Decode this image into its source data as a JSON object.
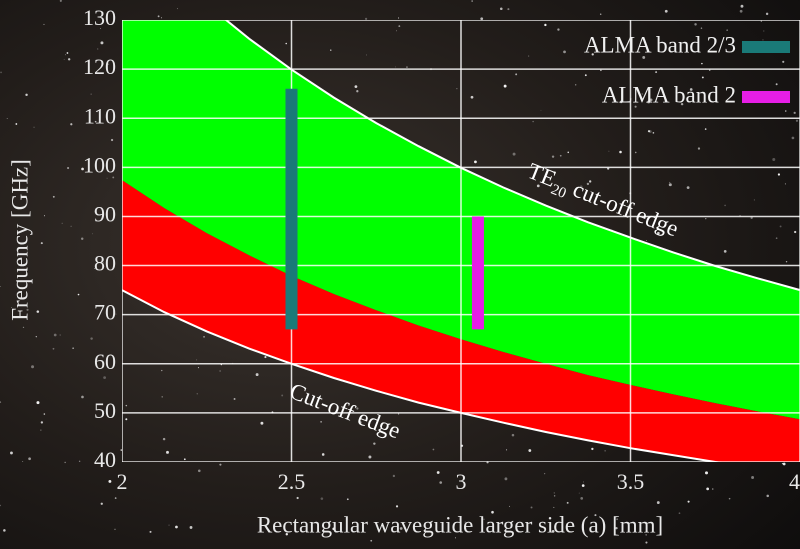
{
  "chart_data": {
    "type": "region",
    "xlabel": "Rectangular waveguide larger side (a) [mm]",
    "ylabel": "Frequency [GHz]",
    "xlim": [
      2,
      4
    ],
    "ylim": [
      40,
      130
    ],
    "xticks": [
      2,
      2.5,
      3,
      3.5,
      4
    ],
    "yticks": [
      40,
      50,
      60,
      70,
      80,
      90,
      100,
      110,
      120,
      130
    ],
    "grid": true,
    "x": [
      2,
      2.125,
      2.25,
      2.375,
      2.5,
      2.625,
      2.75,
      2.875,
      3,
      3.125,
      3.25,
      3.375,
      3.5,
      3.625,
      3.75,
      3.875,
      4
    ],
    "boundaries": [
      {
        "values": [
          75,
          70.5,
          66.6,
          63.1,
          60,
          57.1,
          54.5,
          52.1,
          50,
          48,
          46.1,
          44.4,
          42.8,
          41.4,
          40,
          38.7,
          37.5
        ]
      },
      {
        "values": [
          97.4,
          91.7,
          86.6,
          82.1,
          77.9,
          74.2,
          70.9,
          67.8,
          65,
          62.4,
          60,
          57.7,
          55.7,
          53.8,
          52,
          50.3,
          48.7
        ]
      },
      {
        "values": [
          149.9,
          141.1,
          133.2,
          126.2,
          119.9,
          114.2,
          109,
          104.3,
          99.9,
          95.9,
          92.2,
          88.8,
          85.7,
          82.7,
          79.9,
          77.4,
          75
        ]
      }
    ],
    "regions": [
      {
        "from": 0,
        "to": 1,
        "color": "#ff0000"
      },
      {
        "from": 1,
        "to": 2,
        "color": "#00ff00"
      }
    ],
    "edge_color": "#ffffff",
    "annotations": [
      {
        "text": "Cut-off edge"
      },
      {
        "text": "TE",
        "sub": "20",
        "rest": " cut-off edge"
      }
    ],
    "legend": "upper right",
    "series": [
      {
        "name": "ALMA band 2/3",
        "color": "#1a7a78",
        "x": 2.5,
        "low": 67,
        "high": 116
      },
      {
        "name": "ALMA band 2",
        "color": "#e61ee6",
        "x": 3.05,
        "low": 67,
        "high": 90
      }
    ]
  }
}
